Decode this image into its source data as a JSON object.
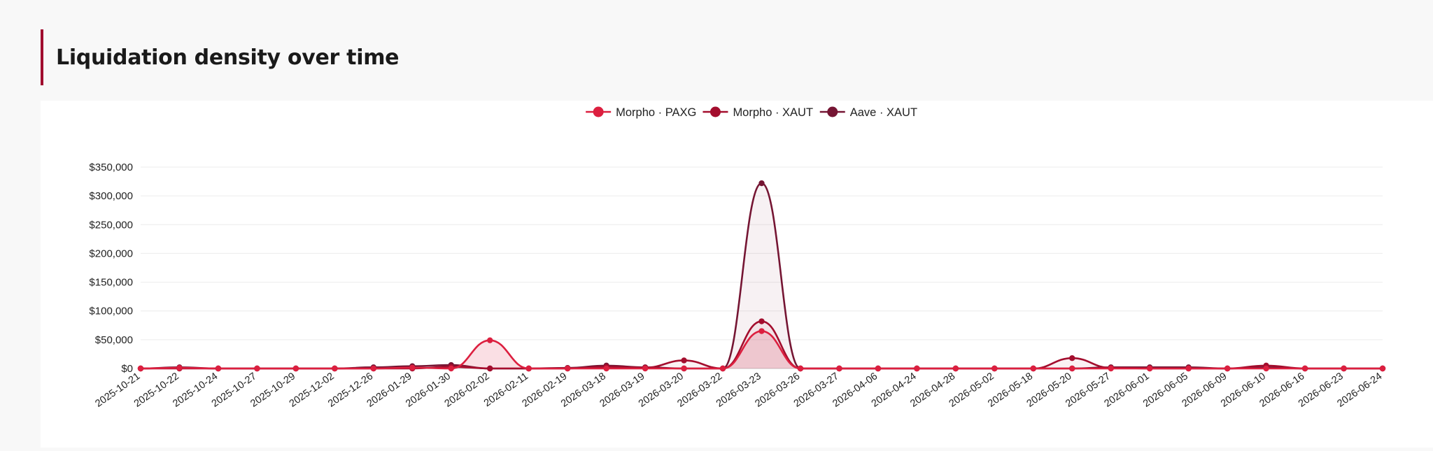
{
  "page": {
    "title": "Liquidation density over time"
  },
  "chart_data": {
    "type": "area",
    "title": "",
    "xlabel": "",
    "ylabel": "",
    "ylim": [
      0,
      350000
    ],
    "yticks": [
      0,
      50000,
      100000,
      150000,
      200000,
      250000,
      300000,
      350000
    ],
    "ytick_labels": [
      "$0",
      "$50,000",
      "$100,000",
      "$150,000",
      "$200,000",
      "$250,000",
      "$300,000",
      "$350,000"
    ],
    "grid": true,
    "legend_position": "top-center",
    "categories": [
      "2025-10-21",
      "2025-10-22",
      "2025-10-24",
      "2025-10-27",
      "2025-10-29",
      "2025-12-02",
      "2025-12-26",
      "2026-01-29",
      "2026-01-30",
      "2026-02-02",
      "2026-02-11",
      "2026-02-19",
      "2026-03-18",
      "2026-03-19",
      "2026-03-20",
      "2026-03-22",
      "2026-03-23",
      "2026-03-26",
      "2026-03-27",
      "2026-04-06",
      "2026-04-24",
      "2026-04-28",
      "2026-05-02",
      "2026-05-18",
      "2026-05-20",
      "2026-05-27",
      "2026-06-01",
      "2026-06-05",
      "2026-06-09",
      "2026-06-10",
      "2026-06-16",
      "2026-06-23",
      "2026-06-24"
    ],
    "series": [
      {
        "name": "Morpho · PAXG",
        "color": "#dc1f3f",
        "fill": "rgba(220,31,63,0.14)",
        "values": [
          0,
          1000,
          0,
          0,
          0,
          0,
          0,
          1500,
          0,
          49000,
          0,
          0,
          0,
          0,
          0,
          0,
          65000,
          0,
          0,
          0,
          0,
          0,
          0,
          0,
          0,
          0,
          0,
          0,
          0,
          0,
          0,
          0,
          0
        ]
      },
      {
        "name": "Morpho · XAUT",
        "color": "#a30d2d",
        "fill": "rgba(163,13,45,0.06)",
        "values": [
          0,
          0,
          0,
          0,
          0,
          0,
          0,
          0,
          3000,
          0,
          0,
          0,
          3000,
          1500,
          14000,
          0,
          82000,
          0,
          0,
          0,
          0,
          0,
          0,
          0,
          18000,
          1000,
          0,
          0,
          0,
          5000,
          0,
          0,
          0
        ]
      },
      {
        "name": "Aave · XAUT",
        "color": "#751533",
        "fill": "rgba(117,21,51,0.06)",
        "values": [
          0,
          2000,
          0,
          0,
          0,
          0,
          2000,
          4000,
          6000,
          0,
          0,
          1000,
          5000,
          2000,
          0,
          0,
          322000,
          0,
          0,
          0,
          0,
          0,
          0,
          0,
          0,
          2000,
          2000,
          2000,
          0,
          2000,
          0,
          0,
          0
        ]
      }
    ]
  }
}
